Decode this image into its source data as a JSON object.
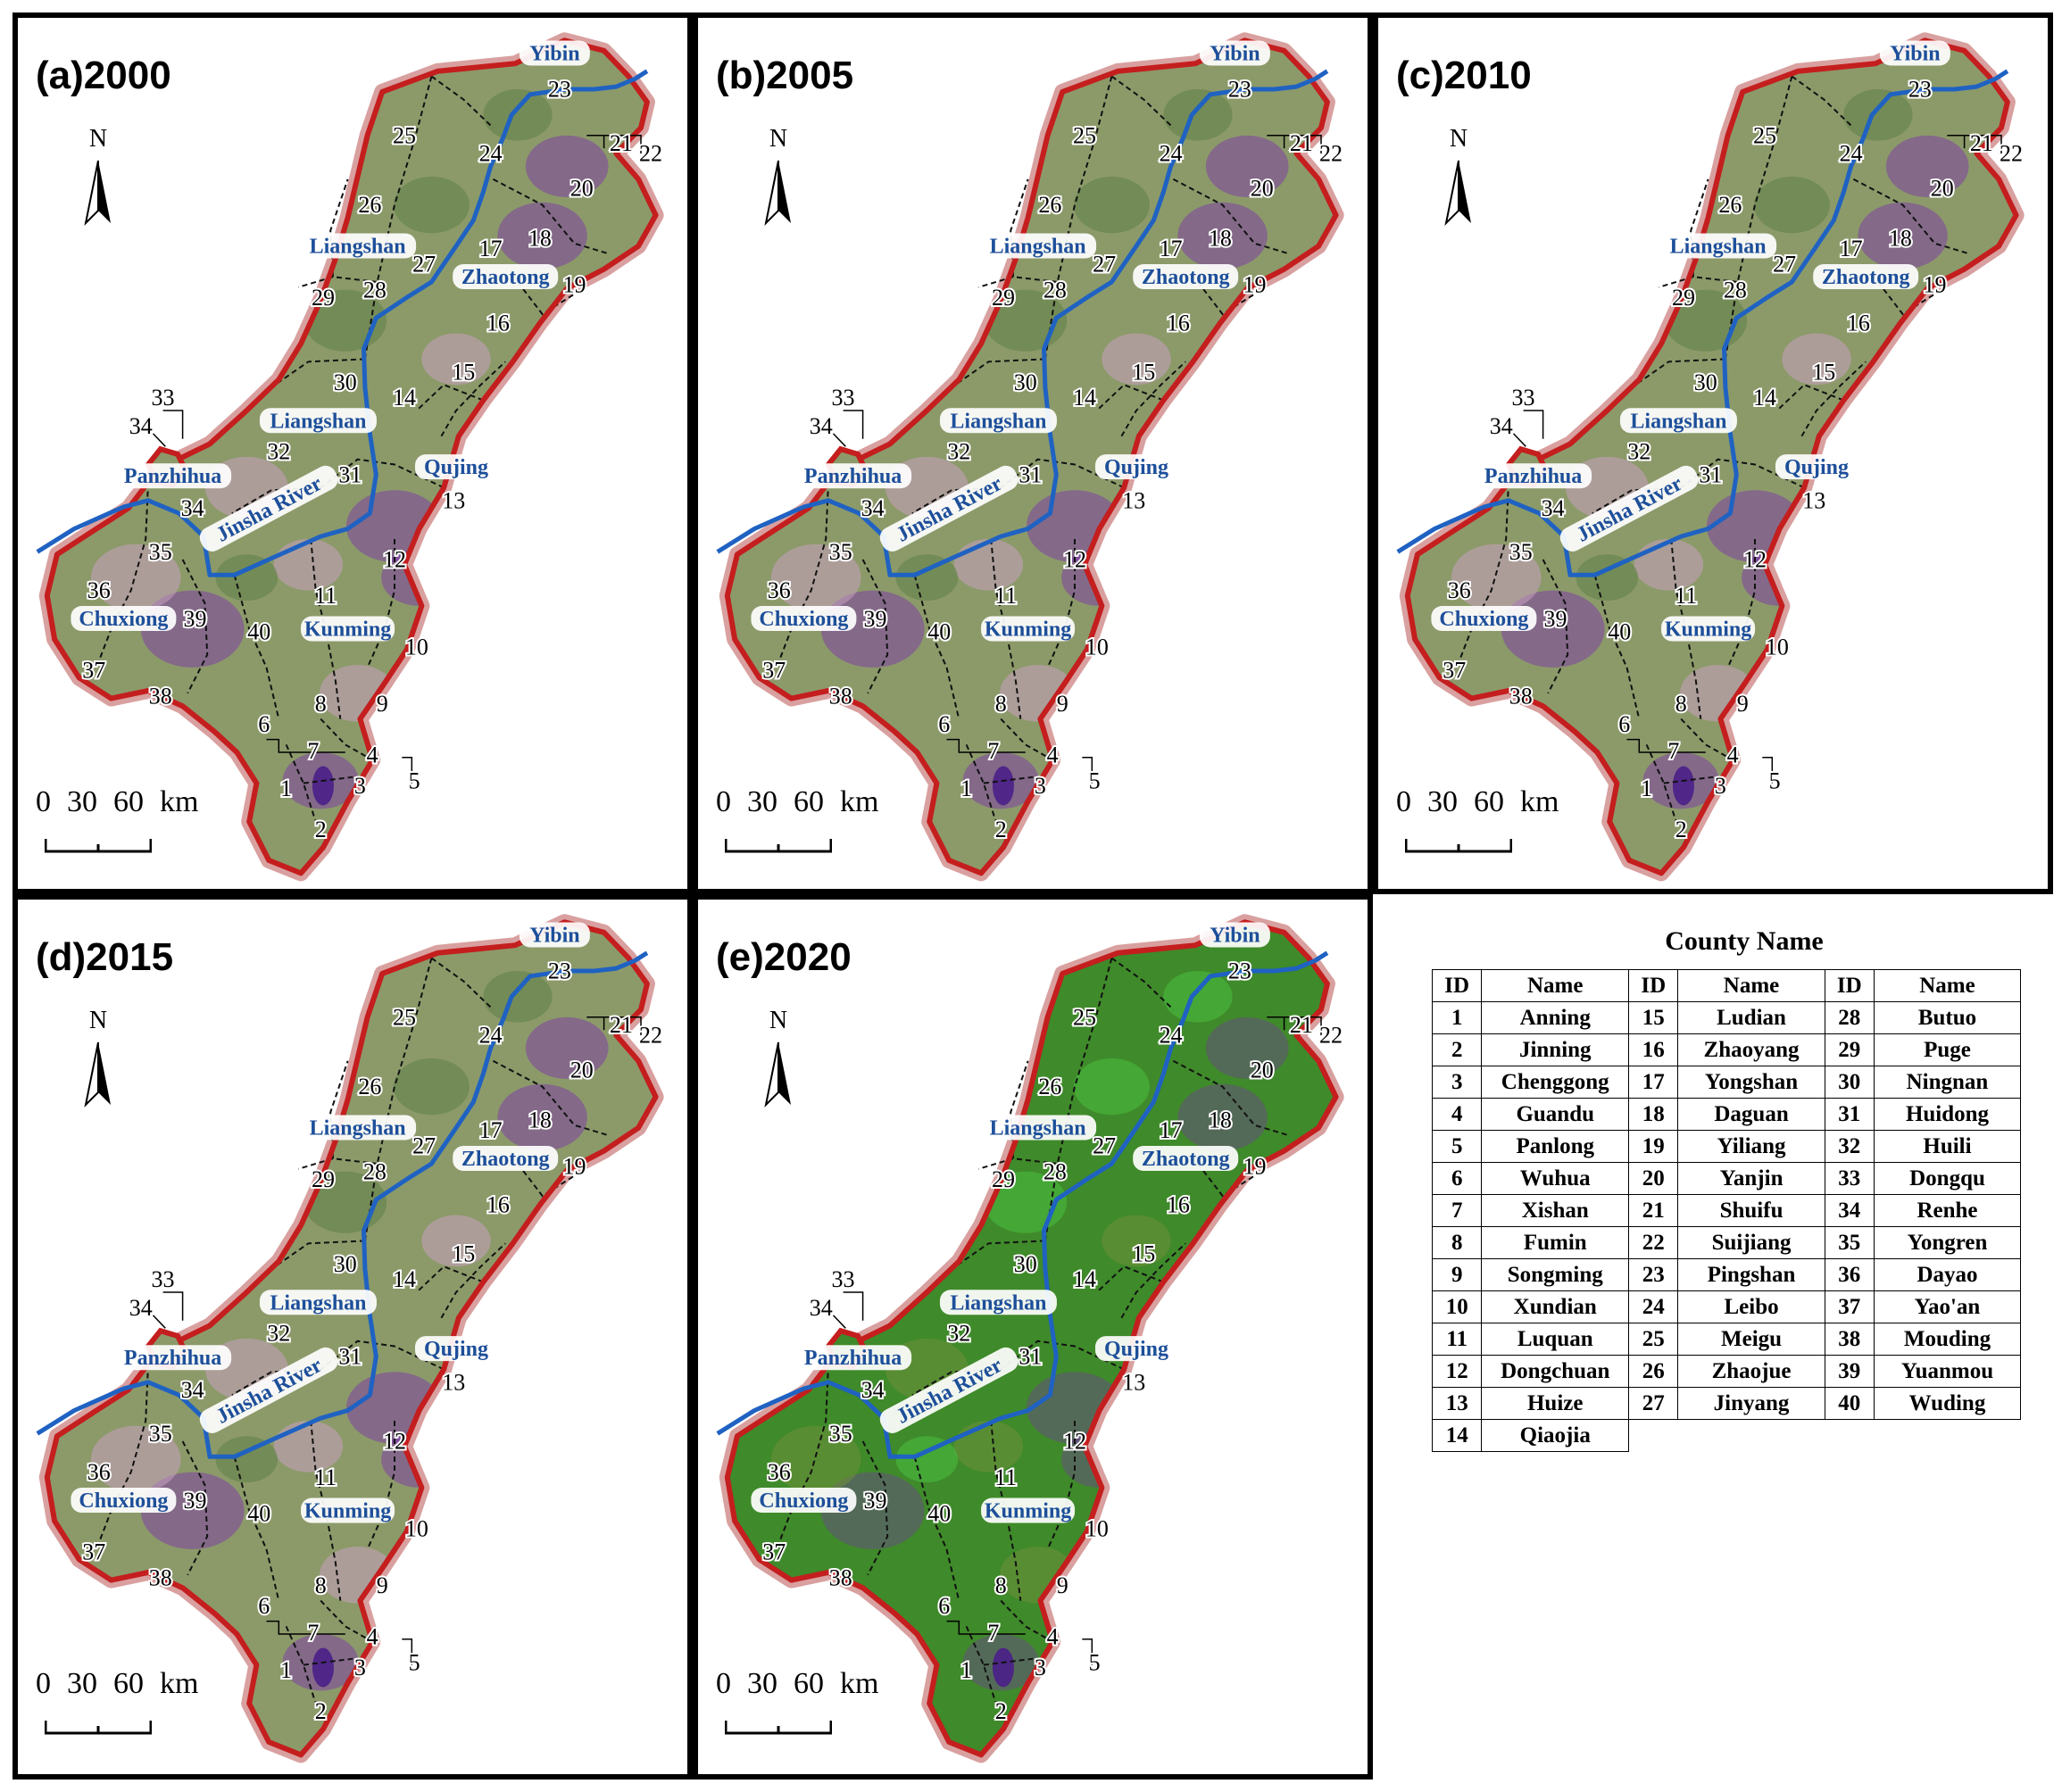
{
  "panels": [
    {
      "label": "(a)2000",
      "vegetation": "sparse"
    },
    {
      "label": "(b)2005",
      "vegetation": "sparse"
    },
    {
      "label": "(c)2010",
      "vegetation": "sparse"
    },
    {
      "label": "(d)2015",
      "vegetation": "sparse"
    },
    {
      "label": "(e)2020",
      "vegetation": "dense"
    }
  ],
  "north_label": "N",
  "scale": {
    "ticks": [
      "0",
      "30",
      "60"
    ],
    "unit": "km"
  },
  "region_labels": [
    "Yibin",
    "Liangshan",
    "Zhaotong",
    "Liangshan",
    "Qujing",
    "Panzhihua",
    "Jinsha River",
    "Chuxiong",
    "Kunming"
  ],
  "county_ids": [
    "1",
    "2",
    "3",
    "4",
    "5",
    "6",
    "7",
    "8",
    "9",
    "10",
    "11",
    "12",
    "13",
    "14",
    "15",
    "16",
    "17",
    "18",
    "19",
    "20",
    "21",
    "22",
    "23",
    "24",
    "25",
    "26",
    "27",
    "28",
    "29",
    "30",
    "31",
    "32",
    "33",
    "34",
    "34",
    "35",
    "36",
    "37",
    "38",
    "39",
    "40"
  ],
  "colors": {
    "boundary": "#c41e1e",
    "river": "#1f62c2",
    "region_label_text": "#1d4f9a",
    "sparse_base": "#8c9a6a",
    "dense_base": "#3f8a2a",
    "urban": "#7b2fb0"
  },
  "table": {
    "title": "County Name",
    "header": [
      "ID",
      "Name",
      "ID",
      "Name",
      "ID",
      "Name"
    ],
    "rows": [
      [
        "1",
        "Anning",
        "15",
        "Ludian",
        "28",
        "Butuo"
      ],
      [
        "2",
        "Jinning",
        "16",
        "Zhaoyang",
        "29",
        "Puge"
      ],
      [
        "3",
        "Chenggong",
        "17",
        "Yongshan",
        "30",
        "Ningnan"
      ],
      [
        "4",
        "Guandu",
        "18",
        "Daguan",
        "31",
        "Huidong"
      ],
      [
        "5",
        "Panlong",
        "19",
        "Yiliang",
        "32",
        "Huili"
      ],
      [
        "6",
        "Wuhua",
        "20",
        "Yanjin",
        "33",
        "Dongqu"
      ],
      [
        "7",
        "Xishan",
        "21",
        "Shuifu",
        "34",
        "Renhe"
      ],
      [
        "8",
        "Fumin",
        "22",
        "Suijiang",
        "35",
        "Yongren"
      ],
      [
        "9",
        "Songming",
        "23",
        "Pingshan",
        "36",
        "Dayao"
      ],
      [
        "10",
        "Xundian",
        "24",
        "Leibo",
        "37",
        "Yao'an"
      ],
      [
        "11",
        "Luquan",
        "25",
        "Meigu",
        "38",
        "Mouding"
      ],
      [
        "12",
        "Dongchuan",
        "26",
        "Zhaojue",
        "39",
        "Yuanmou"
      ],
      [
        "13",
        "Huize",
        "27",
        "Jinyang",
        "40",
        "Wuding"
      ],
      [
        "14",
        "Qiaojia",
        "",
        "",
        "",
        ""
      ]
    ]
  }
}
